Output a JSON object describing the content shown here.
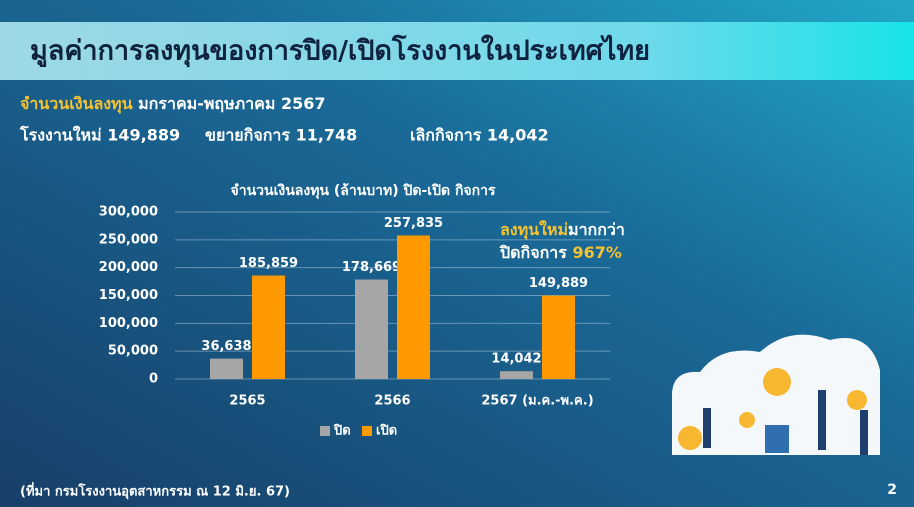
{
  "header": {
    "title": "มูลค่าการลงทุนของการปิด/เปิดโรงงานในประเทศไทย"
  },
  "summary": {
    "label": "จำนวนเงินลงทุน",
    "period": "มกราคม-พฤษภาคม 2567",
    "stats": [
      "โรงงานใหม่ 149,889",
      "ขยายกิจการ 11,748",
      "เลิกกิจการ  14,042"
    ]
  },
  "chart_data": {
    "type": "bar",
    "title": "จำนวนเงินลงทุน (ล้านบาท) ปิด-เปิด กิจการ",
    "categories": [
      "2565",
      "2566",
      "2567 (ม.ค.-พ.ค.)"
    ],
    "series": [
      {
        "name": "ปิด",
        "color": "#a6a6a6",
        "values": [
          36638,
          178669,
          14042
        ],
        "value_labels": [
          "36,638",
          "178,669",
          "14,042"
        ]
      },
      {
        "name": "เปิด",
        "color": "#ff9900",
        "values": [
          185859,
          257835,
          149889
        ],
        "value_labels": [
          "185,859",
          "257,835",
          "149,889"
        ]
      }
    ],
    "ylim": [
      0,
      300000
    ],
    "yticks": [
      0,
      {
        "value": 50000,
        "label": "50,000"
      },
      {
        "value": 100000,
        "label": "100,000"
      },
      {
        "value": 150000,
        "label": "150,000"
      },
      {
        "value": 200000,
        "label": "200,000"
      },
      {
        "value": 250000,
        "label": "250,000"
      },
      {
        "value": 300000,
        "label": "300,000"
      }
    ],
    "grid": true,
    "legend": "bottom",
    "annotation": {
      "highlight": "ลงทุนใหม่",
      "text": "มากกว่า",
      "line2": "ปิดกิจการ",
      "value": "967%"
    }
  },
  "footer": {
    "source": "(ที่มา กรมโรงงานอุตสาหกรรม ณ 12 มิ.ย. 67)",
    "page": "2"
  }
}
